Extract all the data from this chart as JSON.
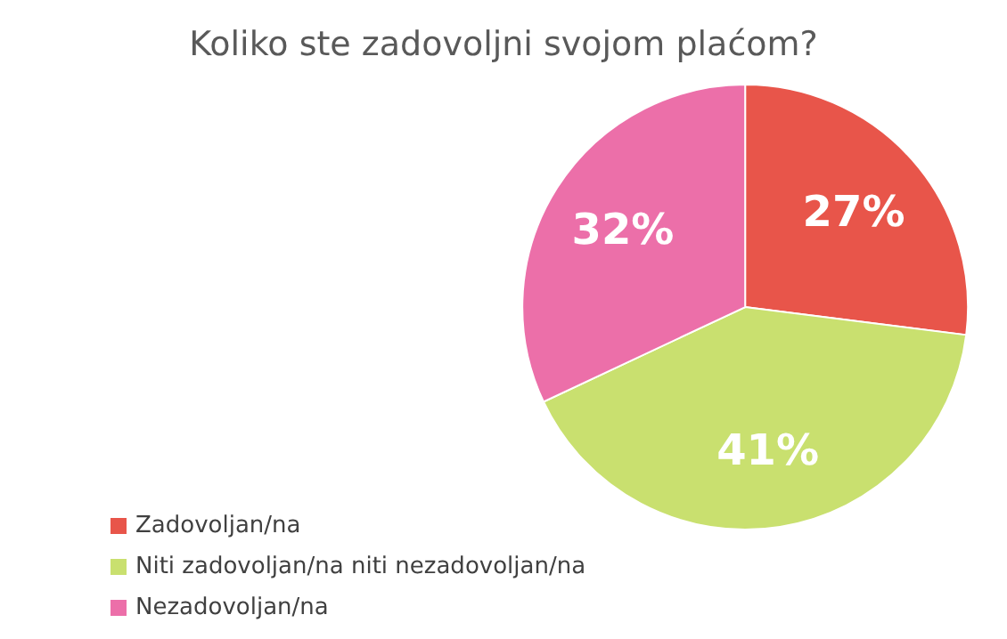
{
  "chart_data": {
    "type": "pie",
    "title": "Koliko ste zadovoljni svojom plaćom?",
    "categories": [
      "Zadovoljan/na",
      "Niti zadovoljan/na niti nezadovoljan/na",
      "Nezadovoljan/na"
    ],
    "values": [
      27,
      41,
      32
    ],
    "colors": [
      "#e8554a",
      "#c9e06f",
      "#ec6fa9"
    ],
    "value_labels": [
      "27%",
      "41%",
      "32%"
    ],
    "legend": "bottom left"
  }
}
